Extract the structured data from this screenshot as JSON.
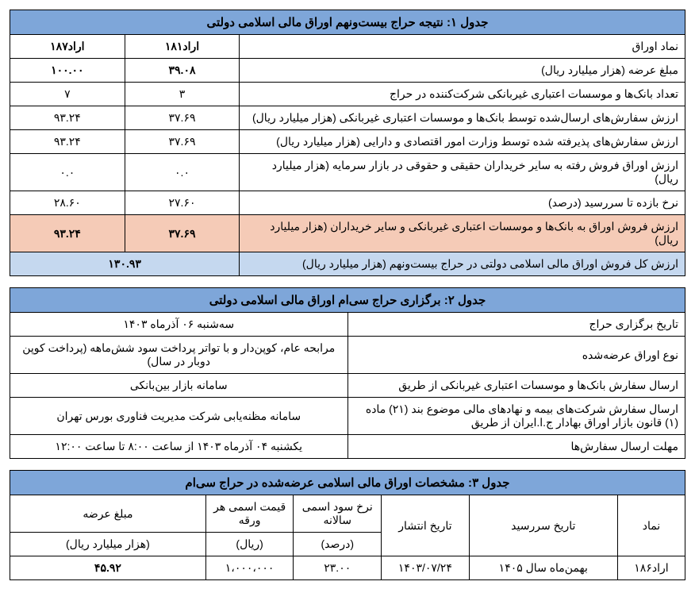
{
  "colors": {
    "header_bg": "#7ea6d9",
    "pink_bg": "#f5cbb7",
    "blue_bg": "#c5d8ef",
    "border": "#000000",
    "text": "#000000"
  },
  "table1": {
    "title": "جدول ۱: نتیجه حراج  بیست‌ونهم اوراق مالی اسلامی دولتی",
    "col_symbol": "نماد اوراق",
    "sym1": "اراد۱۸۱",
    "sym2": "اراد۱۸۷",
    "rows": [
      {
        "label": "مبلغ عرضه (هزار میلیارد ریال)",
        "v1": "۳۹.۰۸",
        "v2": "۱۰۰.۰۰",
        "bold": true
      },
      {
        "label": "تعداد بانک‌ها و موسسات اعتباری غیربانکی شرکت‌کننده در حراج",
        "v1": "۳",
        "v2": "۷"
      },
      {
        "label": "ارزش سفارش‌های ارسال‌شده توسط بانک‌ها و موسسات اعتباری غیربانکی (هزار میلیارد ریال)",
        "v1": "۳۷.۶۹",
        "v2": "۹۳.۲۴"
      },
      {
        "label": "ارزش سفارش‌های پذیرفته شده توسط وزارت امور اقتصادی و دارایی (هزار میلیارد ریال)",
        "v1": "۳۷.۶۹",
        "v2": "۹۳.۲۴"
      },
      {
        "label": "ارزش اوراق فروش رفته به سایر خریداران حقیقی و حقوقی در بازار سرمایه (هزار میلیارد ریال)",
        "v1": "۰.۰",
        "v2": "۰.۰"
      },
      {
        "label": "نرخ بازده تا سررسید (درصد)",
        "v1": "۲۷.۶۰",
        "v2": "۲۸.۶۰"
      }
    ],
    "pink": {
      "label": "ارزش فروش اوراق به بانک‌ها و موسسات اعتباری غیربانکی و سایر خریداران (هزار میلیارد ریال)",
      "v1": "۳۷.۶۹",
      "v2": "۹۳.۲۴"
    },
    "blue": {
      "label": "ارزش کل فروش اوراق مالی اسلامی دولتی در حراج بیست‌ونهم (هزار میلیارد ریال)",
      "total": "۱۳۰.۹۳"
    }
  },
  "table2": {
    "title": "جدول ۲: برگزاری حراج سی‌ام اوراق مالی اسلامی دولتی",
    "rows": [
      {
        "label": "تاریخ برگزاری حراج",
        "val": "سه‌شنبه ۰۶ آذرماه ۱۴۰۳"
      },
      {
        "label": "نوع اوراق عرضه‌شده",
        "val": "مرابحه عام، کوپن‌دار و با تواتر پرداخت سود شش‌ماهه (پرداخت کوپن دوبار در سال)"
      },
      {
        "label": "ارسال سفارش بانک‌ها و موسسات اعتباری غیربانکی از طریق",
        "val": "سامانه بازار بین‌بانکی"
      },
      {
        "label": "ارسال سفارش شرکت‌های بیمه و نهادهای مالی موضوع بند (۲۱) ماده (۱) قانون بازار اوراق بهادار ج.ا.ایران از طریق",
        "val": "سامانه مظنه‌یابی شرکت مدیریت فناوری بورس تهران"
      },
      {
        "label": "مهلت ارسال سفارش‌ها",
        "val": "یکشنبه ۰۴ آذرماه ۱۴۰۳ از ساعت ۸:۰۰ تا ساعت ۱۲:۰۰"
      }
    ]
  },
  "table3": {
    "title": "جدول ۳: مشخصات اوراق مالی اسلامی عرضه‌شده در حراج سی‌ام",
    "headers": {
      "symbol": "نماد",
      "maturity": "تاریخ سررسید",
      "issue": "تاریخ انتشار",
      "rate": "نرخ سود اسمی سالانه",
      "price": "قیمت اسمی هر ورقه",
      "amount": "مبلغ عرضه"
    },
    "subheaders": {
      "rate": "(درصد)",
      "price": "(ریال)",
      "amount": "(هزار میلیارد ریال)"
    },
    "row": {
      "symbol": "اراد۱۸۶",
      "maturity": "بهمن‌ماه سال ۱۴۰۵",
      "issue": "۱۴۰۳/۰۷/۲۴",
      "rate": "۲۳.۰۰",
      "price": "۱،۰۰۰،۰۰۰",
      "amount": "۴۵.۹۲"
    }
  }
}
